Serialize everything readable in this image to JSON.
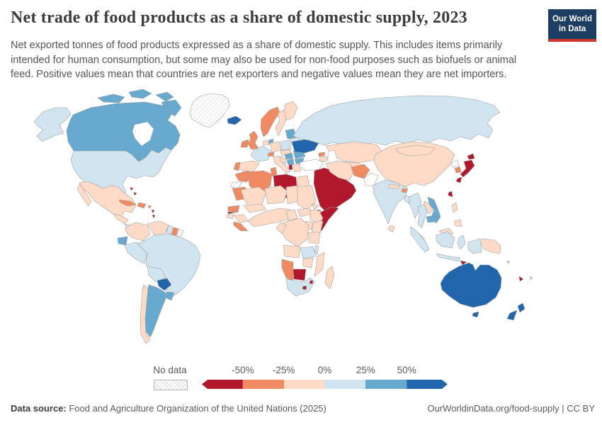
{
  "header": {
    "title": "Net trade of food products as a share of domestic supply, 2023",
    "subtitle": "Net exported tonnes of food products expressed as a share of domestic supply. This includes items primarily intended for human consumption, but some may also be used for non-food purposes such as biofuels or animal feed. Positive values mean that countries are net exporters and negative values mean they are net importers.",
    "logo": {
      "line1": "Our World",
      "line2": "in Data",
      "bg_color": "#1d3d63",
      "accent_color": "#d0342c"
    }
  },
  "legend": {
    "no_data_label": "No data",
    "ticks": [
      "-50%",
      "-25%",
      "0%",
      "25%",
      "50%"
    ]
  },
  "footer": {
    "source_label": "Data source:",
    "source_text": " Food and Agriculture Organization of the United Nations (2025)",
    "credit_text": "OurWorldinData.org/food-supply | CC BY"
  },
  "chart_data": {
    "type": "choropleth",
    "title": "Net trade of food products as a share of domestic supply",
    "year": 2023,
    "unit": "% of domestic supply",
    "legend_position": "bottom",
    "bins": [
      {
        "label": "< -50%",
        "color": "#b2182b"
      },
      {
        "label": "-50% to -25%",
        "color": "#ef8a62"
      },
      {
        "label": "-25% to 0%",
        "color": "#fddbc7"
      },
      {
        "label": "0% to 25%",
        "color": "#d1e5f0"
      },
      {
        "label": "25% to 50%",
        "color": "#67a9cf"
      },
      {
        "label": "> 50%",
        "color": "#2166ac"
      },
      {
        "label": "No data",
        "color": "hatch"
      }
    ],
    "countries": {
      "canada": "25% to 50%",
      "united-states": "0% to 25%",
      "greenland": "No data",
      "mexico": "-25% to 0%",
      "guatemala": "-25% to 0%",
      "nicaragua": "0% to 25%",
      "panama": "-25% to 0%",
      "cuba": "-50% to -25%",
      "haiti-dominican-republic": "-50% to -25%",
      "puerto-rico": "-50% to -25%",
      "bahamas": "< -50%",
      "trinidad-tobago": "< -50%",
      "colombia": "-25% to 0%",
      "venezuela": "-25% to 0%",
      "guyana": "0% to 25%",
      "suriname": "-50% to -25%",
      "french-guiana": "No data",
      "ecuador": "25% to 50%",
      "peru": "0% to 25%",
      "brazil": "0% to 25%",
      "bolivia": "0% to 25%",
      "paraguay": "> 50%",
      "uruguay": "25% to 50%",
      "argentina": "25% to 50%",
      "chile": "-25% to 0%",
      "iceland": "> 50%",
      "ireland": "-50% to -25%",
      "united-kingdom": "-50% to -25%",
      "norway": "-50% to -25%",
      "sweden": "-25% to 0%",
      "finland": "-25% to 0%",
      "denmark": "25% to 50%",
      "baltic-states": "25% to 50%",
      "belarus": "0% to 25%",
      "poland": "0% to 25%",
      "germany": "-25% to 0%",
      "netherlands-belgium": "-25% to 0%",
      "france": "0% to 25%",
      "switzerland": "-50% to -25%",
      "czechia-austria": "-25% to 0%",
      "spain": "-25% to 0%",
      "portugal": "-50% to -25%",
      "italy": "-25% to 0%",
      "hungary": "25% to 50%",
      "romania": "25% to 50%",
      "serbia": "25% to 50%",
      "croatia-bosnia": "-25% to 0%",
      "bulgaria": "25% to 50%",
      "albania": "< -50%",
      "greece": "-25% to 0%",
      "ukraine": "> 50%",
      "russia": "0% to 25%",
      "kazakhstan": "-25% to 0%",
      "central-asia": "-25% to 0%",
      "georgia": "-50% to -25%",
      "azerbaijan-armenia": "-25% to 0%",
      "turkey": "No data",
      "middle-east": "< -50%",
      "iran": "-25% to 0%",
      "afghanistan": "-50% to -25%",
      "pakistan": "No data",
      "india": "0% to 25%",
      "nepal": "-25% to 0%",
      "bhutan": "-50% to -25%",
      "bangladesh": "0% to 25%",
      "sri-lanka": "-25% to 0%",
      "china": "-25% to 0%",
      "mongolia": "-25% to 0%",
      "north-korea": "No data",
      "south-korea": "-50% to -25%",
      "japan": "< -50%",
      "taiwan": "< -50%",
      "myanmar": "0% to 25%",
      "thailand": "0% to 25%",
      "laos": "-25% to 0%",
      "vietnam": "25% to 50%",
      "cambodia": "25% to 50%",
      "malaysia": "-25% to 0%",
      "philippines": "-25% to 0%",
      "indonesia": "0% to 25%",
      "papua-new-guinea": "-25% to 0%",
      "timor-leste": "< -50%",
      "solomon-islands": "-25% to 0%",
      "fiji": "-25% to 0%",
      "new-caledonia": "< -50%",
      "australia": "> 50%",
      "new-zealand": "> 50%",
      "morocco": "-50% to -25%",
      "western-sahara": "No data",
      "algeria": "-50% to -25%",
      "tunisia": "-50% to -25%",
      "libya": "< -50%",
      "egypt": "-25% to 0%",
      "mauritania": "-50% to -25%",
      "mali": "-25% to 0%",
      "niger": "-25% to 0%",
      "chad": "-25% to 0%",
      "sudan": "-25% to 0%",
      "senegal": "-50% to -25%",
      "gambia": "< -50%",
      "guinea-bissau": "-25% to 0%",
      "guinea": "-25% to 0%",
      "sierra-leone-liberia": "-50% to -25%",
      "burkina-faso": "-25% to 0%",
      "west-africa-coast": "-25% to 0%",
      "cameroon": "-25% to 0%",
      "central-african-republic": "-25% to 0%",
      "eritrea": "-25% to 0%",
      "djibouti": "< -50%",
      "ethiopia": "-25% to 0%",
      "somalia": "< -50%",
      "kenya": "-25% to 0%",
      "uganda": "-25% to 0%",
      "drc": "-25% to 0%",
      "gabon-congo": "-25% to 0%",
      "tanzania": "-25% to 0%",
      "angola": "-25% to 0%",
      "zambia": "0% to 25%",
      "malawi": "0% to 25%",
      "mozambique": "-25% to 0%",
      "zimbabwe": "-25% to 0%",
      "botswana": "< -50%",
      "namibia": "-50% to -25%",
      "south-africa": "0% to 25%",
      "lesotho": "< -50%",
      "eswatini": "< -50%",
      "madagascar": "-25% to 0%"
    }
  }
}
